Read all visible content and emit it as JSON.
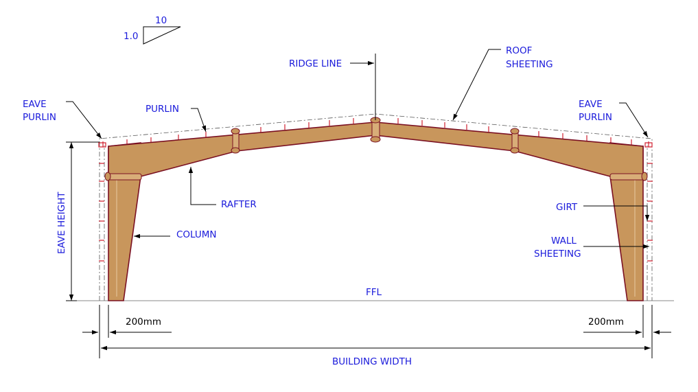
{
  "slope": {
    "run": "10",
    "rise": "1.0"
  },
  "labels": {
    "ridge_line": "RIDGE LINE",
    "roof_sheeting_1": "ROOF",
    "roof_sheeting_2": "SHEETING",
    "eave_purlin_left_1": "EAVE",
    "eave_purlin_left_2": "PURLIN",
    "eave_purlin_right_1": "EAVE",
    "eave_purlin_right_2": "PURLIN",
    "purlin": "PURLIN",
    "rafter": "RAFTER",
    "column": "COLUMN",
    "girt": "GIRT",
    "wall_sheeting_1": "WALL",
    "wall_sheeting_2": "SHEETING",
    "eave_height": "EAVE HEIGHT",
    "ffl": "FFL",
    "offset_left": "200mm",
    "offset_right": "200mm",
    "building_width": "BUILDING WIDTH"
  },
  "colors": {
    "steel_fill": "#c8965c",
    "steel_edge": "#7a1022",
    "label_text": "#1a1adb",
    "purlin_red": "#d02030"
  }
}
